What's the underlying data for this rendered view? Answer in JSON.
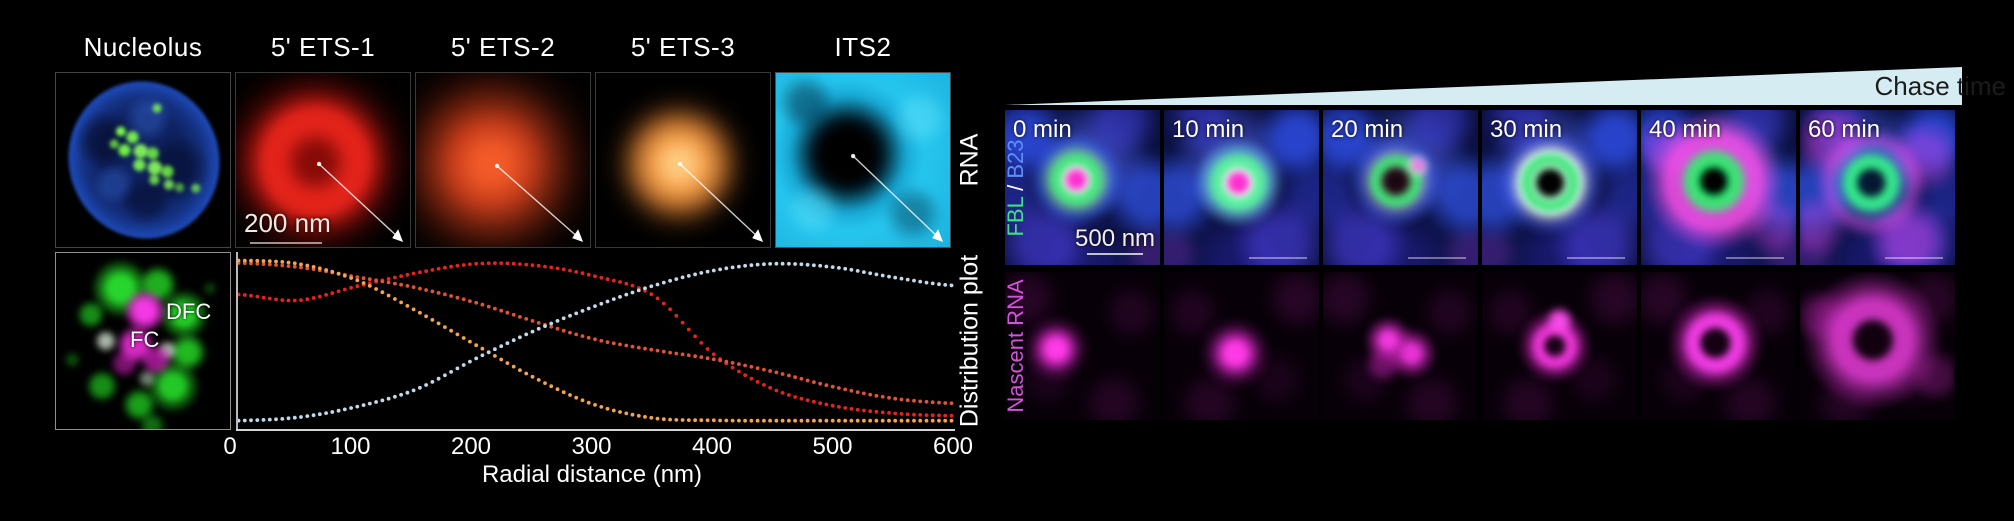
{
  "colors": {
    "ets1": "#e8231d",
    "ets2": "#e05336",
    "ets3": "#f2a44e",
    "its2": "#c3d9ea",
    "fbl": "#3fe081",
    "slash": "#ffffff",
    "b23": "#5f8dff",
    "nascent": "#d254d8",
    "wedge": "#d4ecf2",
    "wedge_text": "#1c1c1c"
  },
  "left": {
    "titles": [
      "Nucleolus",
      "5' ETS-1",
      "5' ETS-2",
      "5' ETS-3",
      "ITS2"
    ],
    "row1_side_label": "RNA",
    "row2_side_label": "Distribution plot",
    "scale_bar": "200 nm",
    "dfc": "DFC",
    "fc": "FC"
  },
  "right": {
    "header": "Chase time",
    "times": [
      "0 min",
      "10 min",
      "20 min",
      "30 min",
      "40 min",
      "60 min"
    ],
    "fbl": "FBL",
    "slash": " / ",
    "b23": "B23",
    "scale_bar": "500 nm",
    "bottom_label": "Nascent RNA"
  },
  "chart_data": {
    "type": "scatter",
    "style": "dotted-curves",
    "title": "Distribution plot",
    "xlabel": "Radial distance (nm)",
    "ylabel": "",
    "xlim": [
      0,
      600
    ],
    "ylim": [
      0,
      1
    ],
    "grid": false,
    "legend_position": "none (series colors match panel titles above)",
    "x_ticks": [
      0,
      100,
      200,
      300,
      400,
      500,
      600
    ],
    "x": [
      0,
      50,
      100,
      150,
      200,
      250,
      300,
      350,
      400,
      450,
      500,
      550,
      600
    ],
    "series": [
      {
        "name": "5' ETS-1",
        "color": "#e8231d",
        "values": [
          0.78,
          0.745,
          0.83,
          0.91,
          0.965,
          0.955,
          0.89,
          0.77,
          0.42,
          0.21,
          0.11,
          0.065,
          0.05
        ]
      },
      {
        "name": "5' ETS-2",
        "color": "#e05336",
        "values": [
          0.97,
          0.945,
          0.885,
          0.82,
          0.73,
          0.615,
          0.51,
          0.445,
          0.39,
          0.315,
          0.225,
          0.155,
          0.125
        ]
      },
      {
        "name": "5' ETS-3",
        "color": "#f2a44e",
        "values": [
          0.985,
          0.965,
          0.865,
          0.68,
          0.475,
          0.275,
          0.115,
          0.035,
          0.022,
          0.02,
          0.02,
          0.02,
          0.02
        ]
      },
      {
        "name": "ITS2",
        "color": "#c3d9ea",
        "values": [
          0.02,
          0.04,
          0.105,
          0.21,
          0.395,
          0.565,
          0.71,
          0.835,
          0.925,
          0.965,
          0.945,
          0.885,
          0.835
        ]
      }
    ]
  }
}
